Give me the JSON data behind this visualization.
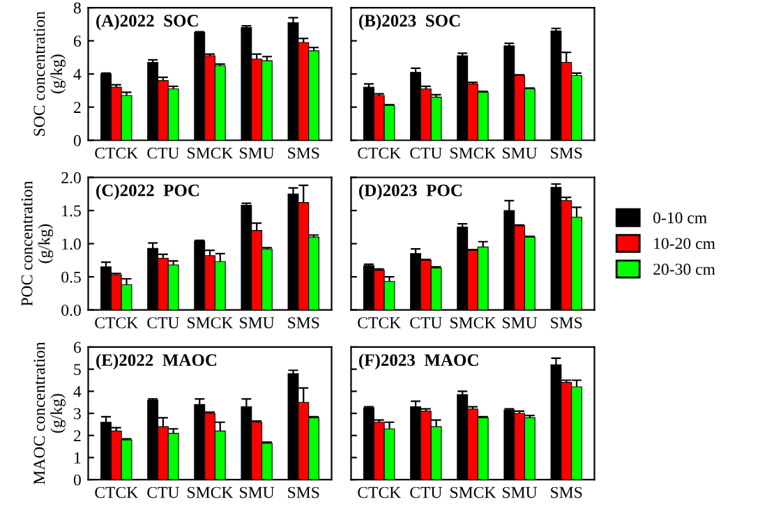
{
  "chart_data": [
    {
      "type": "bar",
      "title": "(A)2022  SOC",
      "ylabel": "SOC concentration\n(g/kg)",
      "categories": [
        "CTCK",
        "CTU",
        "SMCK",
        "SMU",
        "SMS"
      ],
      "ylim": [
        0,
        8
      ],
      "yticks": [
        0,
        2,
        4,
        6,
        8
      ],
      "series": [
        {
          "color": "#000000",
          "values": [
            4.0,
            4.7,
            6.5,
            6.8,
            7.1
          ],
          "errors": [
            0.05,
            0.15,
            0.05,
            0.1,
            0.3
          ]
        },
        {
          "color": "#ff0000",
          "values": [
            3.2,
            3.6,
            5.1,
            4.9,
            5.9
          ],
          "errors": [
            0.15,
            0.2,
            0.1,
            0.3,
            0.25
          ]
        },
        {
          "color": "#00ff00",
          "values": [
            2.7,
            3.1,
            4.5,
            4.8,
            5.4
          ],
          "errors": [
            0.2,
            0.15,
            0.1,
            0.25,
            0.2
          ]
        }
      ]
    },
    {
      "type": "bar",
      "title": "(B)2023  SOC",
      "categories": [
        "CTCK",
        "CTU",
        "SMCK",
        "SMU",
        "SMS"
      ],
      "ylim": [
        0,
        8
      ],
      "yticks": [
        0,
        2,
        4,
        6,
        8
      ],
      "tick_labels": "x",
      "series": [
        {
          "color": "#000000",
          "values": [
            3.2,
            4.1,
            5.1,
            5.7,
            6.6
          ],
          "errors": [
            0.2,
            0.25,
            0.15,
            0.15,
            0.15
          ]
        },
        {
          "color": "#ff0000",
          "values": [
            2.7,
            3.1,
            3.4,
            3.9,
            4.7
          ],
          "errors": [
            0.1,
            0.15,
            0.1,
            0.05,
            0.6
          ]
        },
        {
          "color": "#00ff00",
          "values": [
            2.1,
            2.6,
            2.9,
            3.1,
            3.9
          ],
          "errors": [
            0.05,
            0.15,
            0.05,
            0.05,
            0.15
          ]
        }
      ]
    },
    {
      "type": "bar",
      "title": "(C)2022  POC",
      "ylabel": "POC concentration\n(g/kg)",
      "categories": [
        "CTCK",
        "CTU",
        "SMCK",
        "SMU",
        "SMS"
      ],
      "ylim": [
        0,
        2.0
      ],
      "yticks": [
        {
          "value": 0,
          "label": "0.0"
        },
        0.5,
        {
          "value": 1,
          "label": "1.0"
        },
        1.5,
        {
          "value": 2,
          "label": "2.0"
        }
      ],
      "series": [
        {
          "color": "#000000",
          "values": [
            0.65,
            0.93,
            1.04,
            1.58,
            1.75
          ],
          "errors": [
            0.07,
            0.08,
            0.01,
            0.03,
            0.09
          ]
        },
        {
          "color": "#ff0000",
          "values": [
            0.53,
            0.78,
            0.82,
            1.2,
            1.62
          ],
          "errors": [
            0.02,
            0.06,
            0.08,
            0.11,
            0.26
          ]
        },
        {
          "color": "#00ff00",
          "values": [
            0.38,
            0.68,
            0.73,
            0.92,
            1.1
          ],
          "errors": [
            0.09,
            0.06,
            0.12,
            0.02,
            0.03
          ]
        }
      ]
    },
    {
      "type": "bar",
      "title": "(D)2023  POC",
      "categories": [
        "CTCK",
        "CTU",
        "SMCK",
        "SMU",
        "SMS"
      ],
      "ylim": [
        0,
        2.0
      ],
      "yticks": [
        0,
        0.5,
        1,
        1.5,
        2
      ],
      "tick_labels": "x",
      "legend": "right",
      "series": [
        {
          "name": "0-10 cm",
          "color": "#000000",
          "values": [
            0.67,
            0.85,
            1.25,
            1.5,
            1.85
          ],
          "errors": [
            0.02,
            0.07,
            0.05,
            0.15,
            0.05
          ]
        },
        {
          "name": "10-20 cm",
          "color": "#ff0000",
          "values": [
            0.6,
            0.75,
            0.9,
            1.27,
            1.65
          ],
          "errors": [
            0.02,
            0.01,
            0.01,
            0.01,
            0.05
          ]
        },
        {
          "name": "20-30 cm",
          "color": "#00ff00",
          "values": [
            0.43,
            0.63,
            0.95,
            1.1,
            1.4
          ],
          "errors": [
            0.07,
            0.02,
            0.08,
            0.01,
            0.15
          ]
        }
      ]
    },
    {
      "type": "bar",
      "title": "(E)2022  MAOC",
      "ylabel": "MAOC concentration\n(g/kg)",
      "categories": [
        "CTCK",
        "CTU",
        "SMCK",
        "SMU",
        "SMS"
      ],
      "ylim": [
        0,
        6
      ],
      "yticks": [
        0,
        1,
        2,
        3,
        4,
        5,
        6
      ],
      "series": [
        {
          "color": "#000000",
          "values": [
            2.6,
            3.6,
            3.4,
            3.3,
            4.8
          ],
          "errors": [
            0.25,
            0.05,
            0.25,
            0.35,
            0.15
          ]
        },
        {
          "color": "#ff0000",
          "values": [
            2.2,
            2.4,
            3.0,
            2.6,
            3.5
          ],
          "errors": [
            0.15,
            0.4,
            0.05,
            0.05,
            0.65
          ]
        },
        {
          "color": "#00ff00",
          "values": [
            1.8,
            2.1,
            2.2,
            1.65,
            2.8
          ],
          "errors": [
            0.05,
            0.2,
            0.4,
            0.05,
            0.05
          ]
        }
      ]
    },
    {
      "type": "bar",
      "title": "(F)2023  MAOC",
      "categories": [
        "CTCK",
        "CTU",
        "SMCK",
        "SMU",
        "SMS"
      ],
      "ylim": [
        0,
        6
      ],
      "yticks": [
        0,
        1,
        2,
        3,
        4,
        5,
        6
      ],
      "tick_labels": "x",
      "series": [
        {
          "color": "#000000",
          "values": [
            3.25,
            3.3,
            3.85,
            3.15,
            5.2
          ],
          "errors": [
            0.05,
            0.25,
            0.15,
            0.05,
            0.3
          ]
        },
        {
          "color": "#ff0000",
          "values": [
            2.6,
            3.1,
            3.2,
            3.0,
            4.4
          ],
          "errors": [
            0.1,
            0.1,
            0.1,
            0.1,
            0.1
          ]
        },
        {
          "color": "#00ff00",
          "values": [
            2.3,
            2.4,
            2.8,
            2.8,
            4.2
          ],
          "errors": [
            0.3,
            0.3,
            0.05,
            0.1,
            0.3
          ]
        }
      ]
    }
  ]
}
